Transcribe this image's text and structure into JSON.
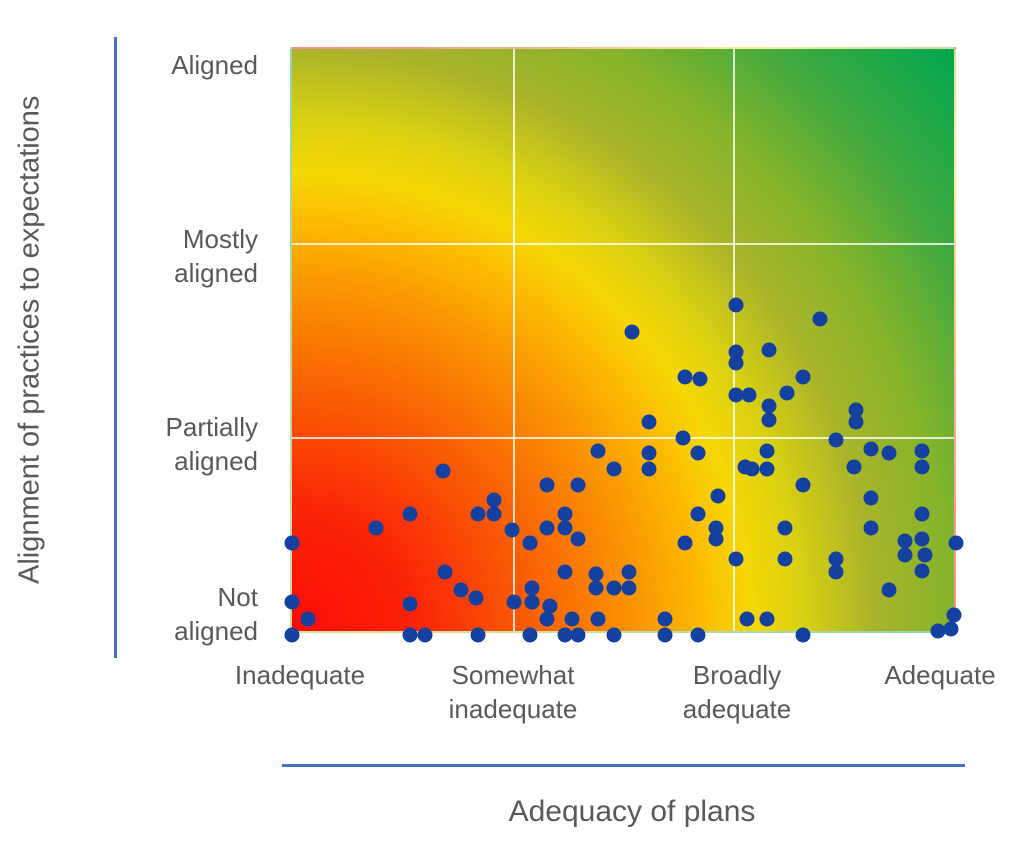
{
  "chart_data": {
    "type": "scatter",
    "title": "",
    "xlabel": "Adequacy of plans",
    "ylabel": "Alignment of practices to expectations",
    "xlim": [
      0,
      3
    ],
    "ylim": [
      0,
      3
    ],
    "grid": true,
    "legend": false,
    "x_ticks": [
      {
        "value": 0,
        "lines": [
          "Inadequate"
        ]
      },
      {
        "value": 1,
        "lines": [
          "Somewhat",
          "inadequate"
        ]
      },
      {
        "value": 2,
        "lines": [
          "Broadly",
          "adequate"
        ]
      },
      {
        "value": 3,
        "lines": [
          "Adequate"
        ]
      }
    ],
    "y_ticks": [
      {
        "value": 3,
        "lines": [
          "Aligned"
        ]
      },
      {
        "value": 2,
        "lines": [
          "Mostly",
          "aligned"
        ]
      },
      {
        "value": 1,
        "lines": [
          "Partially",
          "aligned"
        ]
      },
      {
        "value": 0,
        "lines": [
          "Not",
          "aligned"
        ]
      }
    ],
    "colors": {
      "point_color": "#1440a0",
      "axis_line_color": "#4472c4",
      "text_color": "#595959",
      "gridline_color": "#ffffff"
    },
    "background_gradient": {
      "type": "radial",
      "origin": "bottom-left",
      "description": "risk heatmap: red at bottom-left through orange and yellow to green at top-right",
      "stops": [
        {
          "color": "#fb0b07",
          "at": "0%"
        },
        {
          "color": "#fa2406",
          "at": "14%"
        },
        {
          "color": "#f95e04",
          "at": "27%"
        },
        {
          "color": "#fa9003",
          "at": "38%"
        },
        {
          "color": "#fcb802",
          "at": "46%"
        },
        {
          "color": "#f6d806",
          "at": "52%"
        },
        {
          "color": "#d9d012",
          "at": "58%"
        },
        {
          "color": "#a9b42a",
          "at": "66%"
        },
        {
          "color": "#85b42b",
          "at": "75%"
        },
        {
          "color": "#3fa940",
          "at": "86%"
        },
        {
          "color": "#00a74f",
          "at": "100%"
        }
      ]
    },
    "points": [
      [
        2.0,
        1.69
      ],
      [
        2.38,
        1.62
      ],
      [
        1.53,
        1.55
      ],
      [
        2.0,
        1.45
      ],
      [
        2.15,
        1.46
      ],
      [
        2.0,
        1.39
      ],
      [
        1.77,
        1.32
      ],
      [
        1.84,
        1.31
      ],
      [
        2.3,
        1.32
      ],
      [
        2.23,
        1.24
      ],
      [
        2.0,
        1.23
      ],
      [
        2.06,
        1.23
      ],
      [
        2.15,
        1.17
      ],
      [
        2.15,
        1.1
      ],
      [
        2.54,
        1.15
      ],
      [
        2.54,
        1.09
      ],
      [
        1.61,
        1.09
      ],
      [
        1.76,
        1.01
      ],
      [
        2.45,
        1.0
      ],
      [
        0.68,
        0.84
      ],
      [
        1.38,
        0.94
      ],
      [
        1.61,
        0.93
      ],
      [
        1.83,
        0.93
      ],
      [
        2.14,
        0.94
      ],
      [
        2.61,
        0.95
      ],
      [
        2.69,
        0.93
      ],
      [
        2.84,
        0.94
      ],
      [
        1.45,
        0.85
      ],
      [
        1.61,
        0.85
      ],
      [
        2.04,
        0.86
      ],
      [
        2.07,
        0.85
      ],
      [
        2.14,
        0.85
      ],
      [
        2.53,
        0.86
      ],
      [
        2.84,
        0.86
      ],
      [
        0.91,
        0.69
      ],
      [
        1.15,
        0.77
      ],
      [
        1.29,
        0.77
      ],
      [
        2.3,
        0.77
      ],
      [
        1.92,
        0.71
      ],
      [
        2.61,
        0.7
      ],
      [
        0.53,
        0.62
      ],
      [
        0.84,
        0.62
      ],
      [
        0.91,
        0.62
      ],
      [
        1.23,
        0.62
      ],
      [
        1.83,
        0.62
      ],
      [
        2.84,
        0.62
      ],
      [
        0.38,
        0.55
      ],
      [
        0.99,
        0.54
      ],
      [
        1.15,
        0.55
      ],
      [
        1.23,
        0.55
      ],
      [
        2.22,
        0.55
      ],
      [
        2.61,
        0.55
      ],
      [
        0.0,
        0.47
      ],
      [
        1.07,
        0.47
      ],
      [
        1.29,
        0.49
      ],
      [
        1.91,
        0.55
      ],
      [
        1.91,
        0.49
      ],
      [
        1.77,
        0.47
      ],
      [
        2.0,
        0.39
      ],
      [
        2.22,
        0.39
      ],
      [
        2.45,
        0.39
      ],
      [
        2.76,
        0.48
      ],
      [
        2.84,
        0.49
      ],
      [
        2.76,
        0.41
      ],
      [
        2.85,
        0.41
      ],
      [
        2.99,
        0.47
      ],
      [
        1.23,
        0.32
      ],
      [
        1.37,
        0.31
      ],
      [
        1.52,
        0.32
      ],
      [
        0.69,
        0.32
      ],
      [
        1.37,
        0.24
      ],
      [
        1.45,
        0.24
      ],
      [
        1.52,
        0.24
      ],
      [
        1.08,
        0.24
      ],
      [
        0.76,
        0.23
      ],
      [
        2.45,
        0.32
      ],
      [
        2.69,
        0.23
      ],
      [
        2.84,
        0.33
      ],
      [
        0.0,
        0.17
      ],
      [
        0.07,
        0.08
      ],
      [
        0.53,
        0.16
      ],
      [
        0.83,
        0.19
      ],
      [
        1.0,
        0.17
      ],
      [
        1.08,
        0.17
      ],
      [
        1.16,
        0.15
      ],
      [
        1.15,
        0.08
      ],
      [
        1.26,
        0.08
      ],
      [
        1.38,
        0.08
      ],
      [
        1.68,
        0.08
      ],
      [
        2.05,
        0.08
      ],
      [
        2.14,
        0.08
      ],
      [
        2.98,
        0.1
      ],
      [
        0.0,
        0.0
      ],
      [
        0.53,
        0.0
      ],
      [
        0.6,
        0.0
      ],
      [
        0.84,
        0.0
      ],
      [
        1.07,
        0.0
      ],
      [
        1.23,
        0.0
      ],
      [
        1.29,
        0.0
      ],
      [
        1.45,
        0.0
      ],
      [
        1.68,
        0.0
      ],
      [
        1.83,
        0.0
      ],
      [
        2.3,
        0.0
      ],
      [
        2.91,
        0.02
      ],
      [
        2.97,
        0.03
      ]
    ]
  }
}
